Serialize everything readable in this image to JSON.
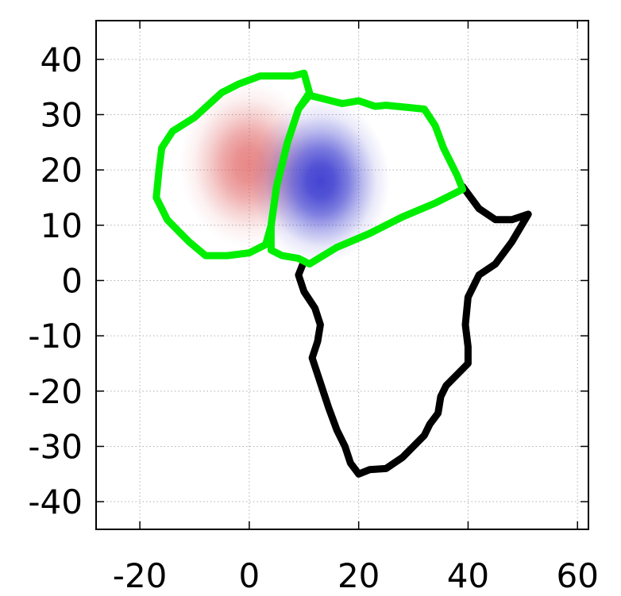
{
  "chart_data": {
    "type": "map",
    "xlim": [
      -28,
      62
    ],
    "ylim": [
      -45,
      47
    ],
    "grid": true,
    "xticks": [
      -20,
      0,
      20,
      40,
      60
    ],
    "yticks": [
      40,
      30,
      20,
      10,
      0,
      -10,
      -20,
      -30,
      -40
    ],
    "xtick_labels": [
      "-20",
      "0",
      "20",
      "40",
      "60"
    ],
    "ytick_labels": [
      "40",
      "30",
      "20",
      "10",
      "0",
      "-10",
      "-20",
      "-30",
      "-40"
    ],
    "colors": {
      "outline": "#000000",
      "region_outline": "#00ee00",
      "positive_blob": "#e06060",
      "negative_blob": "#3a3ad0",
      "grid": "#b0b0b0"
    },
    "blobs": [
      {
        "name": "positive",
        "center": [
          0,
          21
        ],
        "sigma_x": 5.5,
        "sigma_y": 6.5,
        "color": "#e06060",
        "max_opacity": 0.75
      },
      {
        "name": "negative",
        "center": [
          13,
          18
        ],
        "sigma_x": 5.5,
        "sigma_y": 6.5,
        "color": "#3a3ad0",
        "max_opacity": 0.95
      }
    ],
    "africa_outline": [
      [
        39,
        17
      ],
      [
        42,
        13
      ],
      [
        45,
        11
      ],
      [
        48,
        11
      ],
      [
        51,
        12
      ],
      [
        48,
        7
      ],
      [
        45,
        3
      ],
      [
        42,
        1
      ],
      [
        40,
        -3
      ],
      [
        39.5,
        -8
      ],
      [
        40,
        -12
      ],
      [
        40,
        -15
      ],
      [
        38,
        -17
      ],
      [
        36,
        -19
      ],
      [
        35,
        -21
      ],
      [
        34.5,
        -24
      ],
      [
        33,
        -26
      ],
      [
        32,
        -28
      ],
      [
        30,
        -30
      ],
      [
        28,
        -32
      ],
      [
        25,
        -34
      ],
      [
        22,
        -34.2
      ],
      [
        20,
        -35
      ],
      [
        18.5,
        -33
      ],
      [
        17.5,
        -30
      ],
      [
        16,
        -27
      ],
      [
        14.5,
        -23
      ],
      [
        13.5,
        -20
      ],
      [
        12.5,
        -17
      ],
      [
        11.5,
        -14
      ],
      [
        12.5,
        -11
      ],
      [
        13,
        -8
      ],
      [
        12,
        -5
      ],
      [
        10,
        -2
      ],
      [
        9,
        1
      ],
      [
        10,
        3.5
      ]
    ],
    "regions": [
      {
        "name": "west",
        "outline": [
          [
            -17,
            15
          ],
          [
            -16.5,
            20
          ],
          [
            -16,
            24
          ],
          [
            -14,
            27
          ],
          [
            -10,
            29.5
          ],
          [
            -5,
            34
          ],
          [
            -2,
            35.5
          ],
          [
            2,
            37
          ],
          [
            8,
            37
          ],
          [
            10,
            37.5
          ],
          [
            11,
            34
          ],
          [
            9,
            31
          ],
          [
            7,
            25
          ],
          [
            5,
            17
          ],
          [
            4,
            10
          ],
          [
            3,
            6.5
          ],
          [
            0,
            5
          ],
          [
            -4,
            4.5
          ],
          [
            -8,
            4.5
          ],
          [
            -11,
            7
          ],
          [
            -13,
            9
          ],
          [
            -15,
            11
          ],
          [
            -17,
            15
          ]
        ]
      },
      {
        "name": "east",
        "outline": [
          [
            11,
            33.5
          ],
          [
            17,
            32
          ],
          [
            20,
            32.5
          ],
          [
            23,
            31.5
          ],
          [
            25,
            31.7
          ],
          [
            29,
            31.3
          ],
          [
            32,
            31
          ],
          [
            34,
            28
          ],
          [
            35.5,
            24
          ],
          [
            37,
            21
          ],
          [
            38,
            19
          ],
          [
            39,
            16.5
          ],
          [
            34,
            14
          ],
          [
            28,
            11.5
          ],
          [
            22,
            8.5
          ],
          [
            16,
            6
          ],
          [
            11,
            3
          ],
          [
            9,
            4
          ],
          [
            6,
            4.5
          ],
          [
            4,
            5.5
          ],
          [
            4,
            10
          ],
          [
            5,
            17
          ],
          [
            7,
            25
          ],
          [
            9,
            31
          ],
          [
            11,
            33.5
          ]
        ]
      }
    ]
  }
}
